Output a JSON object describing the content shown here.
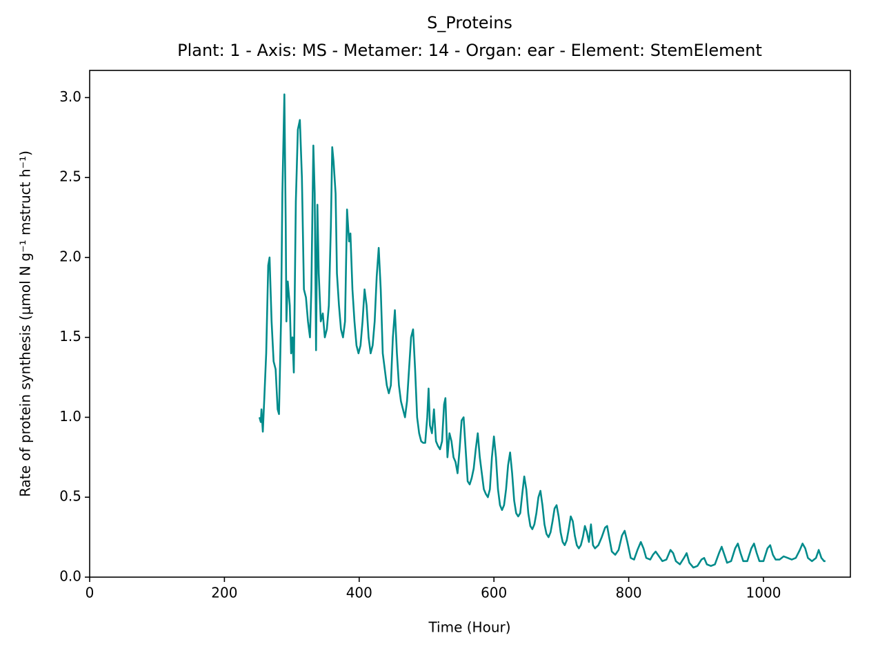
{
  "chart_data": {
    "type": "line",
    "title": "S_Proteins",
    "subtitle": "Plant: 1 - Axis: MS - Metamer: 14 - Organ: ear - Element: StemElement",
    "x_label": "Time (Hour)",
    "y_label": "Rate of protein synthesis (μmol N g⁻¹ mstruct h⁻¹)",
    "xlim": [
      0,
      1129
    ],
    "ylim": [
      0,
      3.17
    ],
    "xticks": [
      0,
      200,
      400,
      600,
      800,
      1000
    ],
    "yticks": [
      {
        "value": 0,
        "label": "0.0"
      },
      0.5,
      {
        "value": 1,
        "label": "1.0"
      },
      1.5,
      {
        "value": 2,
        "label": "2.0"
      },
      2.5,
      {
        "value": 3,
        "label": "3.0"
      }
    ],
    "grid": false,
    "series": [
      {
        "name": "S_Proteins",
        "color": "#008b8b",
        "x": [
          252,
          254,
          255,
          257,
          259,
          262,
          265,
          267,
          270,
          273,
          276,
          279,
          281,
          284,
          286,
          289,
          291,
          292,
          294,
          297,
          299,
          301,
          303,
          306,
          309,
          312,
          315,
          318,
          321,
          324,
          327,
          329,
          332,
          334,
          336,
          338,
          340,
          343,
          346,
          349,
          352,
          355,
          358,
          360,
          362,
          365,
          367,
          370,
          373,
          376,
          379,
          382,
          385,
          387,
          390,
          393,
          396,
          399,
          402,
          405,
          408,
          411,
          414,
          417,
          420,
          423,
          426,
          429,
          432,
          435,
          438,
          441,
          444,
          447,
          450,
          453,
          456,
          459,
          462,
          465,
          468,
          471,
          474,
          477,
          480,
          483,
          486,
          489,
          492,
          495,
          498,
          501,
          503,
          505,
          508,
          511,
          514,
          517,
          520,
          523,
          526,
          528,
          531,
          534,
          537,
          540,
          543,
          546,
          549,
          552,
          555,
          558,
          561,
          564,
          567,
          570,
          573,
          576,
          579,
          582,
          585,
          588,
          591,
          594,
          597,
          600,
          603,
          606,
          609,
          612,
          615,
          618,
          621,
          624,
          627,
          630,
          633,
          636,
          639,
          642,
          645,
          648,
          651,
          654,
          657,
          660,
          663,
          666,
          669,
          672,
          675,
          678,
          681,
          684,
          687,
          690,
          693,
          696,
          699,
          702,
          705,
          708,
          711,
          714,
          717,
          720,
          723,
          726,
          729,
          732,
          735,
          738,
          741,
          744,
          747,
          750,
          755,
          760,
          765,
          768,
          771,
          775,
          780,
          785,
          790,
          794,
          798,
          803,
          808,
          813,
          818,
          822,
          826,
          832,
          836,
          840,
          845,
          850,
          856,
          862,
          866,
          870,
          876,
          882,
          886,
          890,
          896,
          902,
          908,
          912,
          916,
          922,
          928,
          934,
          938,
          942,
          946,
          952,
          958,
          962,
          966,
          970,
          976,
          982,
          986,
          990,
          994,
          1000,
          1006,
          1010,
          1014,
          1018,
          1024,
          1030,
          1036,
          1042,
          1048,
          1054,
          1058,
          1062,
          1066,
          1072,
          1078,
          1082,
          1086,
          1090,
          1092
        ],
        "values": [
          1.0,
          0.97,
          1.05,
          0.91,
          1.1,
          1.4,
          1.95,
          2.0,
          1.6,
          1.35,
          1.3,
          1.05,
          1.02,
          1.6,
          2.4,
          3.02,
          2.2,
          1.6,
          1.85,
          1.7,
          1.4,
          1.5,
          1.28,
          2.35,
          2.8,
          2.86,
          2.5,
          1.8,
          1.75,
          1.6,
          1.5,
          1.8,
          2.7,
          2.4,
          1.42,
          2.33,
          1.9,
          1.6,
          1.65,
          1.5,
          1.55,
          1.7,
          2.2,
          2.69,
          2.6,
          2.4,
          1.9,
          1.7,
          1.55,
          1.5,
          1.6,
          2.3,
          2.1,
          2.15,
          1.8,
          1.6,
          1.45,
          1.4,
          1.45,
          1.6,
          1.8,
          1.7,
          1.5,
          1.4,
          1.45,
          1.6,
          1.88,
          2.06,
          1.8,
          1.4,
          1.3,
          1.2,
          1.15,
          1.2,
          1.5,
          1.67,
          1.4,
          1.2,
          1.1,
          1.05,
          1.0,
          1.1,
          1.3,
          1.5,
          1.55,
          1.3,
          1.0,
          0.9,
          0.85,
          0.84,
          0.84,
          1.0,
          1.18,
          0.95,
          0.9,
          1.05,
          0.85,
          0.82,
          0.8,
          0.85,
          1.08,
          1.12,
          0.75,
          0.9,
          0.85,
          0.75,
          0.72,
          0.65,
          0.8,
          0.98,
          1.0,
          0.8,
          0.6,
          0.58,
          0.62,
          0.68,
          0.8,
          0.9,
          0.75,
          0.65,
          0.55,
          0.52,
          0.5,
          0.55,
          0.75,
          0.88,
          0.75,
          0.55,
          0.45,
          0.42,
          0.45,
          0.55,
          0.7,
          0.78,
          0.65,
          0.48,
          0.4,
          0.38,
          0.4,
          0.52,
          0.63,
          0.55,
          0.4,
          0.32,
          0.3,
          0.33,
          0.4,
          0.5,
          0.54,
          0.45,
          0.33,
          0.27,
          0.25,
          0.28,
          0.35,
          0.43,
          0.45,
          0.38,
          0.28,
          0.22,
          0.2,
          0.23,
          0.3,
          0.38,
          0.35,
          0.26,
          0.2,
          0.18,
          0.2,
          0.25,
          0.32,
          0.28,
          0.22,
          0.33,
          0.2,
          0.18,
          0.2,
          0.25,
          0.31,
          0.32,
          0.25,
          0.16,
          0.14,
          0.17,
          0.26,
          0.29,
          0.22,
          0.12,
          0.11,
          0.17,
          0.22,
          0.18,
          0.12,
          0.11,
          0.14,
          0.16,
          0.13,
          0.1,
          0.11,
          0.17,
          0.15,
          0.1,
          0.08,
          0.12,
          0.15,
          0.09,
          0.06,
          0.07,
          0.11,
          0.12,
          0.08,
          0.07,
          0.08,
          0.15,
          0.19,
          0.14,
          0.09,
          0.1,
          0.18,
          0.21,
          0.15,
          0.1,
          0.1,
          0.18,
          0.21,
          0.15,
          0.1,
          0.1,
          0.18,
          0.2,
          0.14,
          0.11,
          0.11,
          0.13,
          0.12,
          0.11,
          0.12,
          0.17,
          0.21,
          0.18,
          0.12,
          0.1,
          0.12,
          0.17,
          0.12,
          0.1,
          0.1
        ]
      }
    ]
  }
}
